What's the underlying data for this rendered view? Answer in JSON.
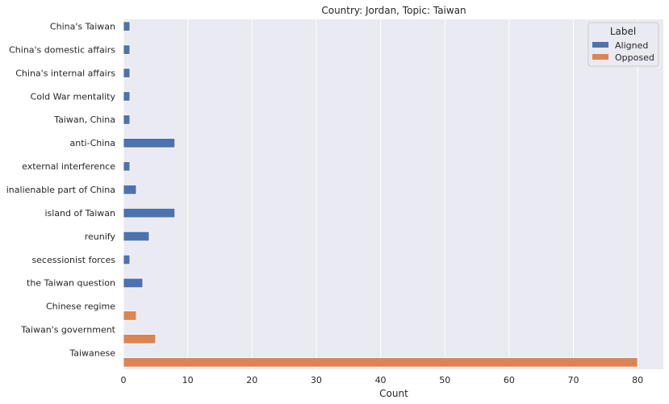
{
  "chart_data": {
    "type": "bar",
    "orientation": "horizontal",
    "title": "Country: Jordan, Topic: Taiwan",
    "xlabel": "Count",
    "ylabel": "",
    "xlim": [
      0,
      84
    ],
    "xticks": [
      0,
      10,
      20,
      30,
      40,
      50,
      60,
      70,
      80
    ],
    "grid": true,
    "legend": {
      "title": "Label",
      "placement": "top-right",
      "entries": [
        "Aligned",
        "Opposed"
      ]
    },
    "colors": {
      "Aligned": "#4c72b0",
      "Opposed": "#dd8452",
      "background": "#eaeaf2",
      "grid": "#ffffff"
    },
    "categories": [
      "China's Taiwan",
      "China's domestic affairs",
      "China's internal affairs",
      "Cold War mentality",
      "Taiwan, China",
      "anti-China",
      "external interference",
      "inalienable part of China",
      "island of Taiwan",
      "reunify",
      "secessionist forces",
      "the Taiwan question",
      "Chinese regime",
      "Taiwan's government",
      "Taiwanese"
    ],
    "series": [
      {
        "name": "Aligned",
        "values": [
          1,
          1,
          1,
          1,
          1,
          8,
          1,
          2,
          8,
          4,
          1,
          3,
          null,
          null,
          null
        ]
      },
      {
        "name": "Opposed",
        "values": [
          null,
          null,
          null,
          null,
          null,
          null,
          null,
          null,
          null,
          null,
          null,
          null,
          2,
          5,
          80
        ]
      }
    ]
  }
}
